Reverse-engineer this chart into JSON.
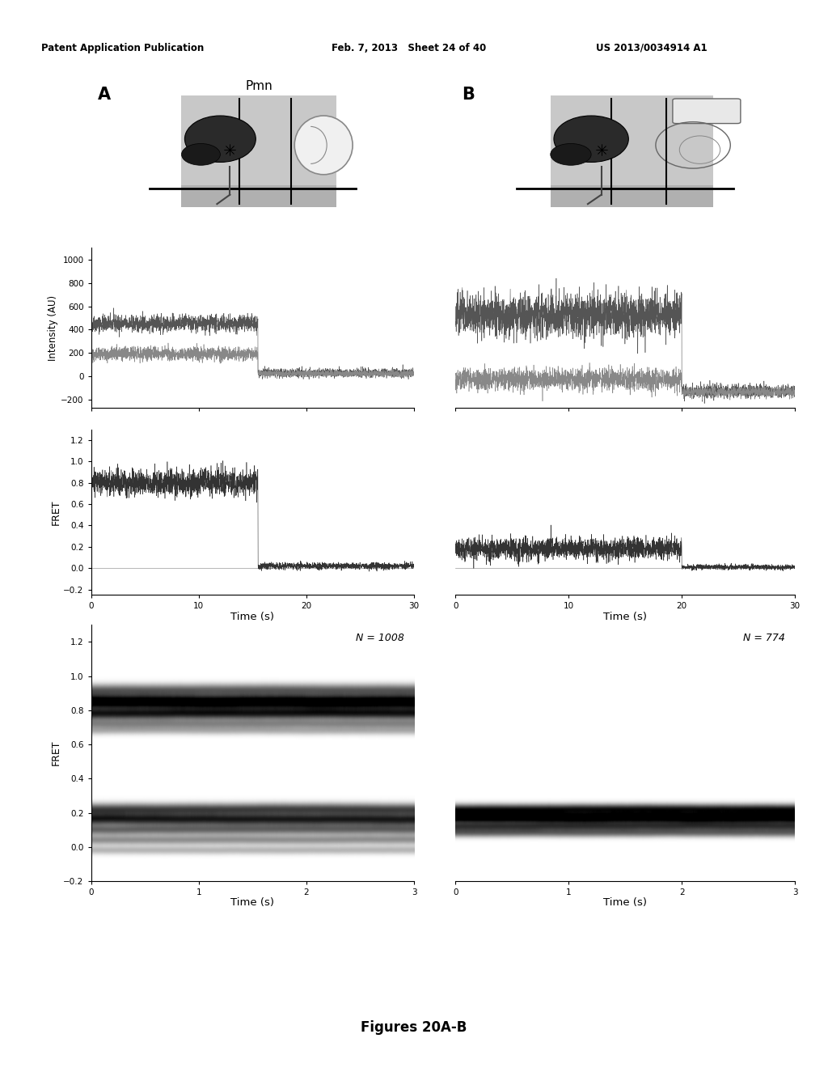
{
  "header_left": "Patent Application Publication",
  "header_mid": "Feb. 7, 2013   Sheet 24 of 40",
  "header_right": "US 2013/0034914 A1",
  "label_A": "A",
  "label_B": "B",
  "pmn_label": "Pmn",
  "n_label_A": "N = 1008",
  "n_label_B": "N = 774",
  "intensity_ylabel": "Intensity (AU)",
  "fret_ylabel": "FRET",
  "time_xlabel": "Time (s)",
  "intensity_yticks_A": [
    -200,
    0,
    200,
    400,
    600,
    800,
    1000
  ],
  "intensity_ylim_A": [
    -270,
    1100
  ],
  "intensity_yticks_B_show": false,
  "intensity_ylim_B": [
    -50,
    950
  ],
  "fret_yticks": [
    -0.2,
    0.0,
    0.2,
    0.4,
    0.6,
    0.8,
    1.0,
    1.2
  ],
  "fret_ylim": [
    -0.25,
    1.3
  ],
  "fret_xlim": [
    0,
    30
  ],
  "heatmap_yticks": [
    -0.2,
    0.0,
    0.2,
    0.4,
    0.6,
    0.8,
    1.0,
    1.2
  ],
  "heatmap_ylim": [
    -0.2,
    1.3
  ],
  "heatmap_xlim": [
    0,
    3
  ],
  "figure_caption": "Figures 20A-B",
  "schematic_bg": "#c8c8c8",
  "schematic_bg_dark": "#b0b0b0"
}
